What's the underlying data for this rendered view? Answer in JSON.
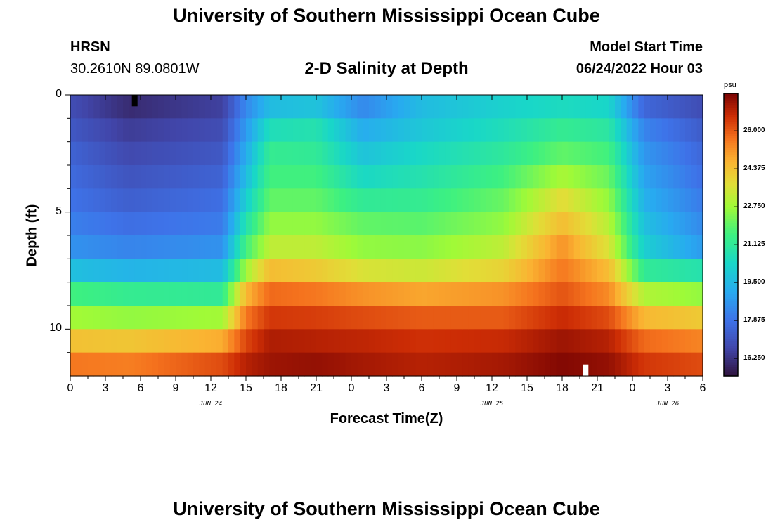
{
  "page": {
    "title_top": "University of Southern Mississippi Ocean Cube",
    "title_bottom": "University of Southern Mississippi Ocean Cube",
    "station": "HRSN",
    "coords": "30.2610N  89.0801W",
    "plot_title": "2-D Salinity at Depth",
    "model_start_label": "Model Start Time",
    "model_start_value": "06/24/2022 Hour 03"
  },
  "chart_data": {
    "type": "heatmap",
    "title": "2-D Salinity at Depth",
    "xlabel": "Forecast Time(Z)",
    "ylabel": "Depth (ft)",
    "units": "psu",
    "x_tick_labels": [
      "0",
      "3",
      "6",
      "9",
      "12",
      "15",
      "18",
      "21",
      "0",
      "3",
      "6",
      "9",
      "12",
      "15",
      "18",
      "21",
      "0",
      "3",
      "6"
    ],
    "x_hours": [
      0,
      3,
      6,
      9,
      12,
      15,
      18,
      21,
      24,
      27,
      30,
      33,
      36,
      39,
      42,
      45,
      48,
      51,
      54
    ],
    "x_range_hours": [
      0,
      54
    ],
    "date_labels": [
      {
        "label": "JUN 24",
        "hour": 12
      },
      {
        "label": "JUN 25",
        "hour": 36
      },
      {
        "label": "JUN 26",
        "hour": 51
      }
    ],
    "y_tick_labels": [
      "0",
      "5",
      "10"
    ],
    "y_ticks": [
      0,
      5,
      10
    ],
    "y_range_ft": [
      0,
      12
    ],
    "depth_layers_ft": [
      0.5,
      1.5,
      2.5,
      3.5,
      4.5,
      5.5,
      6.5,
      7.5,
      8.5,
      9.5,
      10.5,
      11.5
    ],
    "colorbar": {
      "units": "psu",
      "tick_labels": [
        "26.000",
        "24.375",
        "22.750",
        "21.125",
        "19.500",
        "17.875",
        "16.250"
      ],
      "ticks": [
        26.0,
        24.375,
        22.75,
        21.125,
        19.5,
        17.875,
        16.25
      ],
      "range": [
        15.5,
        27.6
      ]
    },
    "salinity_keyframes": [
      {
        "hour": 0,
        "values": [
          16.9,
          17.2,
          17.5,
          17.7,
          17.9,
          18.2,
          18.6,
          19.7,
          21.6,
          22.8,
          24.4,
          25.6
        ]
      },
      {
        "hour": 5,
        "values": [
          16.1,
          16.5,
          16.8,
          17.1,
          17.4,
          17.8,
          18.3,
          19.4,
          21.3,
          22.6,
          24.3,
          25.5
        ]
      },
      {
        "hour": 13,
        "values": [
          16.6,
          16.9,
          17.2,
          17.5,
          17.8,
          18.1,
          18.6,
          19.6,
          21.2,
          22.8,
          24.8,
          26.2
        ]
      },
      {
        "hour": 15,
        "values": [
          18.4,
          18.8,
          19.2,
          19.6,
          20.1,
          20.8,
          21.6,
          22.8,
          24.6,
          25.6,
          26.3,
          26.9
        ]
      },
      {
        "hour": 17,
        "values": [
          19.6,
          20.6,
          21.3,
          21.6,
          22.0,
          22.6,
          23.2,
          24.5,
          25.8,
          26.5,
          27.0,
          27.2
        ]
      },
      {
        "hour": 21,
        "values": [
          19.8,
          20.8,
          21.2,
          21.6,
          22.0,
          22.6,
          23.2,
          24.2,
          25.6,
          26.4,
          26.9,
          27.3
        ]
      },
      {
        "hour": 25,
        "values": [
          18.4,
          19.2,
          19.8,
          20.4,
          21.2,
          22.0,
          22.6,
          23.6,
          25.2,
          26.2,
          26.8,
          27.1
        ]
      },
      {
        "hour": 30,
        "values": [
          19.6,
          19.9,
          20.4,
          20.8,
          21.3,
          21.9,
          22.5,
          23.4,
          24.9,
          26.0,
          26.6,
          26.9
        ]
      },
      {
        "hour": 37,
        "values": [
          20.2,
          20.6,
          21.1,
          21.6,
          22.1,
          22.6,
          23.2,
          24.0,
          25.2,
          26.0,
          26.7,
          27.1
        ]
      },
      {
        "hour": 42,
        "values": [
          20.5,
          21.3,
          22.0,
          22.9,
          23.8,
          24.5,
          25.2,
          25.6,
          26.1,
          26.7,
          27.2,
          27.5
        ]
      },
      {
        "hour": 46,
        "values": [
          20.3,
          21.0,
          21.6,
          22.1,
          22.6,
          23.1,
          23.6,
          24.5,
          25.3,
          26.2,
          26.9,
          27.3
        ]
      },
      {
        "hour": 49,
        "values": [
          17.6,
          18.3,
          18.7,
          19.0,
          19.3,
          19.7,
          20.1,
          21.2,
          23.0,
          24.6,
          25.8,
          26.5
        ]
      },
      {
        "hour": 54,
        "values": [
          16.9,
          17.3,
          17.6,
          17.8,
          18.1,
          18.4,
          18.8,
          20.8,
          22.6,
          24.2,
          25.4,
          26.2
        ]
      }
    ],
    "markers": [
      {
        "type": "observed",
        "hour": 5.5,
        "depth_ft": 0.25,
        "color": "#000000"
      },
      {
        "type": "observed",
        "hour": 44.0,
        "depth_ft": 11.75,
        "color": "#ffffff"
      }
    ]
  }
}
